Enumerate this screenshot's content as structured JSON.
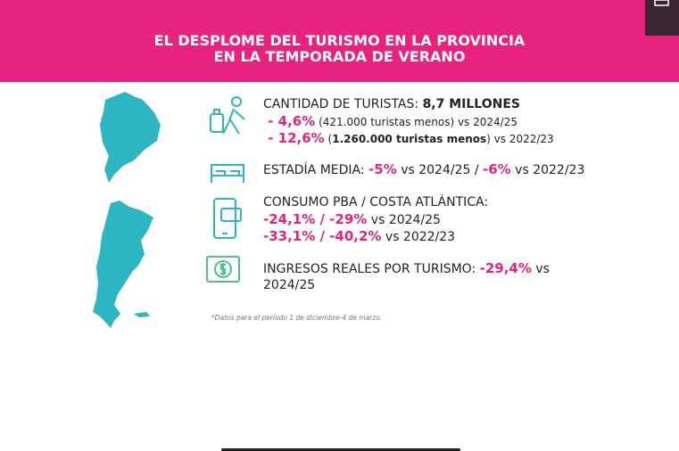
{
  "header": {
    "title_lines": [
      "EL DESPLOME DEL TURISMO EN LA PROVINCIA",
      "EN LA TEMPORADA DE VERANO"
    ]
  },
  "items": [
    {
      "lines": [
        [
          {
            "text": "CANTIDAD DE TURISTAS: ",
            "style": "plain"
          },
          {
            "text": "8,7 MILLONES",
            "style": "bold"
          }
        ],
        [
          {
            "text": " - 4,6%",
            "style": "pink"
          },
          {
            "text": " (421.000 turistas menos) vs 2024/25",
            "style": "small"
          }
        ],
        [
          {
            "text": " - 12,6%",
            "style": "pink"
          },
          {
            "text": " (",
            "style": "small"
          },
          {
            "text": "1.260.000 turistas menos",
            "style": "small-bold"
          },
          {
            "text": ") vs 2022/23",
            "style": "small"
          }
        ]
      ]
    },
    {
      "lines": [
        [
          {
            "text": "ESTADÍA MEDIA: ",
            "style": "plain"
          },
          {
            "text": "-5%",
            "style": "pink"
          },
          {
            "text": " vs 2024/25 / ",
            "style": "plain"
          },
          {
            "text": "-6%",
            "style": "pink"
          },
          {
            "text": " vs 2022/23",
            "style": "plain"
          }
        ]
      ]
    },
    {
      "lines": [
        [
          {
            "text": "CONSUMO PBA / COSTA ATLÁNTICA:",
            "style": "plain"
          }
        ],
        [
          {
            "text": "-24,1% / -29%",
            "style": "pink"
          },
          {
            "text": " vs 2024/25",
            "style": "plain"
          }
        ],
        [
          {
            "text": "-33,1% / -40,2%",
            "style": "pink"
          },
          {
            "text": " vs 2022/23",
            "style": "plain"
          }
        ]
      ]
    },
    {
      "lines": [
        [
          {
            "text": "INGRESOS REALES POR TURISMO: ",
            "style": "plain"
          },
          {
            "text": "-29,4%",
            "style": "pink"
          },
          {
            "text": " vs",
            "style": "plain"
          }
        ],
        [
          {
            "text": "2024/25",
            "style": "plain"
          }
        ]
      ]
    }
  ],
  "footnote": "*Datos para el período 1 de diciembre-4 de marzo."
}
